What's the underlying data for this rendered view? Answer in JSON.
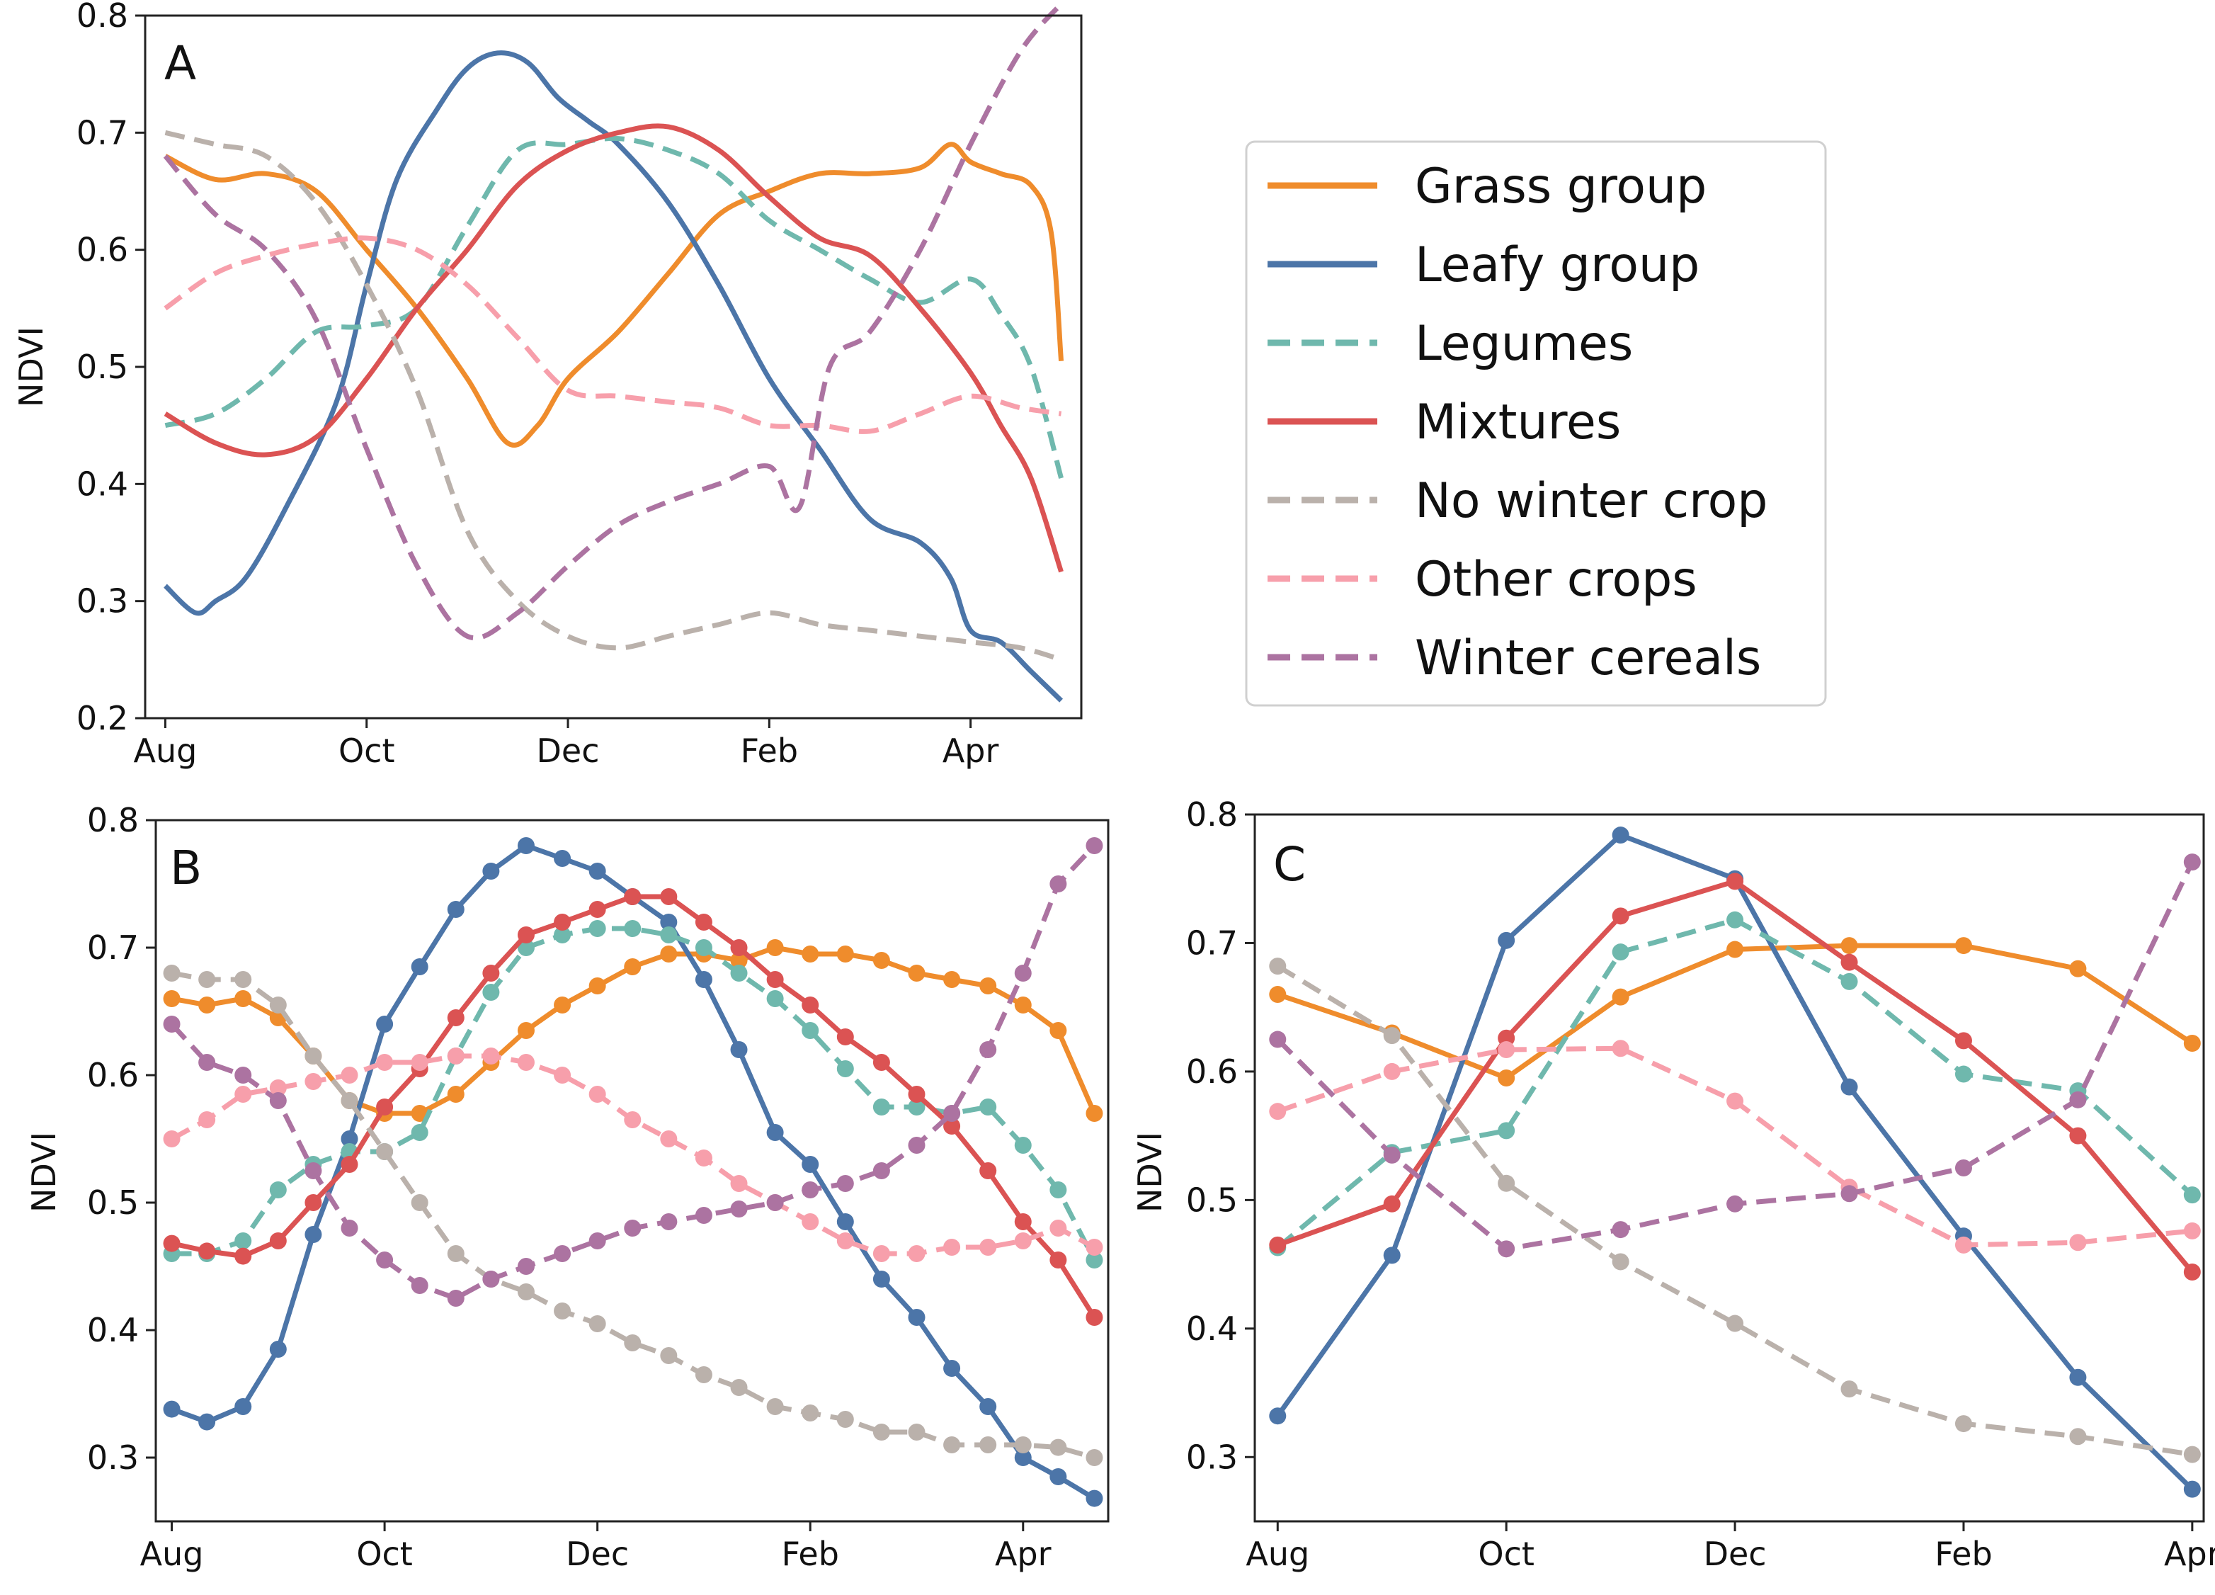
{
  "colors": {
    "Grass group": "#ef8c2c",
    "Leafy group": "#4c75a8",
    "Legumes": "#6fb8ad",
    "Mixtures": "#db5353",
    "No winter crop": "#bab1ab",
    "Other crops": "#f79fab",
    "Winter cereals": "#ac73a1"
  },
  "legend": {
    "entries": [
      {
        "label": "Grass group",
        "style": "solid"
      },
      {
        "label": "Leafy group",
        "style": "solid"
      },
      {
        "label": "Legumes",
        "style": "dashed"
      },
      {
        "label": "Mixtures",
        "style": "solid"
      },
      {
        "label": "No winter crop",
        "style": "dashed"
      },
      {
        "label": "Other crops",
        "style": "dashed"
      },
      {
        "label": "Winter cereals",
        "style": "dashed"
      }
    ]
  },
  "chart_data": [
    {
      "panel": "A",
      "type": "line",
      "ylabel": "NDVI",
      "xlabel": "",
      "ylim": [
        0.2,
        0.8
      ],
      "yticks": [
        "0.2",
        "0.3",
        "0.4",
        "0.5",
        "0.6",
        "0.7",
        "0.8"
      ],
      "xticks": [
        "Aug",
        "Oct",
        "Dec",
        "Feb",
        "Apr"
      ],
      "xrange": [
        -0.2,
        9.1
      ],
      "markers": false,
      "series": [
        {
          "name": "Grass group",
          "style": "solid",
          "x": [
            0,
            0.5,
            1,
            1.5,
            2,
            2.5,
            3,
            3.4,
            3.7,
            4,
            4.5,
            5,
            5.5,
            6,
            6.5,
            7,
            7.5,
            7.8,
            8,
            8.3,
            8.6,
            8.8,
            8.9
          ],
          "values": [
            0.68,
            0.66,
            0.665,
            0.65,
            0.6,
            0.55,
            0.49,
            0.435,
            0.45,
            0.49,
            0.53,
            0.58,
            0.63,
            0.65,
            0.665,
            0.665,
            0.67,
            0.69,
            0.675,
            0.665,
            0.655,
            0.615,
            0.505
          ]
        },
        {
          "name": "Leafy group",
          "style": "solid",
          "x": [
            0,
            0.3,
            0.5,
            0.8,
            1.2,
            1.7,
            2,
            2.3,
            2.7,
            3,
            3.3,
            3.6,
            3.9,
            4.2,
            4.5,
            5,
            5.5,
            6,
            6.5,
            7,
            7.5,
            7.8,
            8,
            8.3,
            8.6,
            8.9
          ],
          "values": [
            0.313,
            0.29,
            0.3,
            0.32,
            0.38,
            0.47,
            0.57,
            0.66,
            0.72,
            0.755,
            0.768,
            0.76,
            0.73,
            0.71,
            0.69,
            0.64,
            0.57,
            0.49,
            0.43,
            0.37,
            0.35,
            0.32,
            0.275,
            0.265,
            0.24,
            0.215
          ]
        },
        {
          "name": "Legumes",
          "style": "dashed",
          "x": [
            0,
            0.5,
            1,
            1.5,
            2,
            2.5,
            3,
            3.5,
            4,
            4.5,
            5,
            5.5,
            6,
            6.5,
            7,
            7.5,
            8,
            8.3,
            8.6,
            8.9
          ],
          "values": [
            0.45,
            0.46,
            0.49,
            0.53,
            0.535,
            0.55,
            0.62,
            0.685,
            0.69,
            0.695,
            0.685,
            0.665,
            0.625,
            0.6,
            0.575,
            0.555,
            0.575,
            0.545,
            0.5,
            0.405
          ]
        },
        {
          "name": "Mixtures",
          "style": "solid",
          "x": [
            0,
            0.5,
            1,
            1.5,
            2,
            2.5,
            3,
            3.5,
            4,
            4.5,
            5,
            5.5,
            6,
            6.5,
            7,
            7.5,
            8,
            8.3,
            8.6,
            8.9
          ],
          "values": [
            0.46,
            0.435,
            0.425,
            0.44,
            0.49,
            0.55,
            0.6,
            0.655,
            0.685,
            0.7,
            0.705,
            0.685,
            0.645,
            0.61,
            0.595,
            0.55,
            0.495,
            0.45,
            0.405,
            0.325
          ]
        },
        {
          "name": "No winter crop",
          "style": "dashed",
          "x": [
            0,
            0.5,
            1,
            1.5,
            2,
            2.5,
            3,
            3.5,
            4,
            4.5,
            5,
            5.5,
            6,
            6.5,
            7,
            7.5,
            8,
            8.5,
            8.9
          ],
          "values": [
            0.7,
            0.69,
            0.68,
            0.64,
            0.57,
            0.48,
            0.36,
            0.3,
            0.27,
            0.26,
            0.27,
            0.28,
            0.29,
            0.28,
            0.275,
            0.27,
            0.265,
            0.26,
            0.25
          ]
        },
        {
          "name": "Other crops",
          "style": "dashed",
          "x": [
            0,
            0.5,
            1,
            1.5,
            2,
            2.5,
            3,
            3.5,
            4,
            4.5,
            5,
            5.5,
            6,
            6.5,
            7,
            7.5,
            8,
            8.5,
            8.9
          ],
          "values": [
            0.55,
            0.58,
            0.595,
            0.605,
            0.61,
            0.6,
            0.57,
            0.525,
            0.48,
            0.475,
            0.47,
            0.465,
            0.45,
            0.45,
            0.445,
            0.46,
            0.475,
            0.465,
            0.46
          ]
        },
        {
          "name": "Winter cereals",
          "style": "dashed",
          "x": [
            0,
            0.5,
            1,
            1.5,
            2,
            2.5,
            3,
            3.5,
            4,
            4.5,
            5,
            5.5,
            6,
            6.3,
            6.6,
            7,
            7.5,
            8,
            8.5,
            8.9
          ],
          "values": [
            0.68,
            0.63,
            0.6,
            0.54,
            0.43,
            0.33,
            0.27,
            0.29,
            0.33,
            0.365,
            0.385,
            0.4,
            0.415,
            0.38,
            0.5,
            0.53,
            0.6,
            0.69,
            0.77,
            0.81
          ]
        }
      ]
    },
    {
      "panel": "B",
      "type": "line",
      "ylabel": "NDVI",
      "xlabel": "",
      "ylim": [
        0.25,
        0.8
      ],
      "yticks": [
        "0.3",
        "0.4",
        "0.5",
        "0.6",
        "0.7",
        "0.8"
      ],
      "xticks": [
        "Aug",
        "Oct",
        "Dec",
        "Feb",
        "Apr"
      ],
      "xrange": [
        -0.15,
        8.8
      ],
      "markers": true,
      "series": [
        {
          "name": "Grass group",
          "style": "solid",
          "x": [
            0,
            0.33,
            0.67,
            1,
            1.33,
            1.67,
            2,
            2.33,
            2.67,
            3,
            3.33,
            3.67,
            4,
            4.33,
            4.67,
            5,
            5.33,
            5.67,
            6,
            6.33,
            6.67,
            7,
            7.33,
            7.67,
            8,
            8.33,
            8.67
          ],
          "values": [
            0.66,
            0.655,
            0.66,
            0.645,
            0.615,
            0.58,
            0.57,
            0.57,
            0.585,
            0.61,
            0.635,
            0.655,
            0.67,
            0.685,
            0.695,
            0.695,
            0.69,
            0.7,
            0.695,
            0.695,
            0.69,
            0.68,
            0.675,
            0.67,
            0.655,
            0.635,
            0.57
          ]
        },
        {
          "name": "Leafy group",
          "style": "solid",
          "x": [
            0,
            0.33,
            0.67,
            1,
            1.33,
            1.67,
            2,
            2.33,
            2.67,
            3,
            3.33,
            3.67,
            4,
            4.33,
            4.67,
            5,
            5.33,
            5.67,
            6,
            6.33,
            6.67,
            7,
            7.33,
            7.67,
            8,
            8.33,
            8.67
          ],
          "values": [
            0.338,
            0.328,
            0.34,
            0.385,
            0.475,
            0.55,
            0.64,
            0.685,
            0.73,
            0.76,
            0.78,
            0.77,
            0.76,
            0.74,
            0.72,
            0.675,
            0.62,
            0.555,
            0.53,
            0.485,
            0.44,
            0.41,
            0.37,
            0.34,
            0.3,
            0.285,
            0.268
          ]
        },
        {
          "name": "Legumes",
          "style": "dashed",
          "x": [
            0,
            0.33,
            0.67,
            1,
            1.33,
            1.67,
            2,
            2.33,
            2.67,
            3,
            3.33,
            3.67,
            4,
            4.33,
            4.67,
            5,
            5.33,
            5.67,
            6,
            6.33,
            6.67,
            7,
            7.33,
            7.67,
            8,
            8.33,
            8.67
          ],
          "values": [
            0.46,
            0.46,
            0.47,
            0.51,
            0.53,
            0.54,
            0.54,
            0.555,
            0.615,
            0.665,
            0.7,
            0.71,
            0.715,
            0.715,
            0.71,
            0.7,
            0.68,
            0.66,
            0.635,
            0.605,
            0.575,
            0.575,
            0.57,
            0.575,
            0.545,
            0.51,
            0.455
          ]
        },
        {
          "name": "Mixtures",
          "style": "solid",
          "x": [
            0,
            0.33,
            0.67,
            1,
            1.33,
            1.67,
            2,
            2.33,
            2.67,
            3,
            3.33,
            3.67,
            4,
            4.33,
            4.67,
            5,
            5.33,
            5.67,
            6,
            6.33,
            6.67,
            7,
            7.33,
            7.67,
            8,
            8.33,
            8.67
          ],
          "values": [
            0.468,
            0.462,
            0.458,
            0.47,
            0.5,
            0.53,
            0.575,
            0.605,
            0.645,
            0.68,
            0.71,
            0.72,
            0.73,
            0.74,
            0.74,
            0.72,
            0.7,
            0.675,
            0.655,
            0.63,
            0.61,
            0.585,
            0.56,
            0.525,
            0.485,
            0.455,
            0.41
          ]
        },
        {
          "name": "No winter crop",
          "style": "dashed",
          "x": [
            0,
            0.33,
            0.67,
            1,
            1.33,
            1.67,
            2,
            2.33,
            2.67,
            3,
            3.33,
            3.67,
            4,
            4.33,
            4.67,
            5,
            5.33,
            5.67,
            6,
            6.33,
            6.67,
            7,
            7.33,
            7.67,
            8,
            8.33,
            8.67
          ],
          "values": [
            0.68,
            0.675,
            0.675,
            0.655,
            0.615,
            0.58,
            0.54,
            0.5,
            0.46,
            0.44,
            0.43,
            0.415,
            0.405,
            0.39,
            0.38,
            0.365,
            0.355,
            0.34,
            0.335,
            0.33,
            0.32,
            0.32,
            0.31,
            0.31,
            0.31,
            0.308,
            0.3
          ]
        },
        {
          "name": "Other crops",
          "style": "dashed",
          "x": [
            0,
            0.33,
            0.67,
            1,
            1.33,
            1.67,
            2,
            2.33,
            2.67,
            3,
            3.33,
            3.67,
            4,
            4.33,
            4.67,
            5,
            5.33,
            5.67,
            6,
            6.33,
            6.67,
            7,
            7.33,
            7.67,
            8,
            8.33,
            8.67
          ],
          "values": [
            0.55,
            0.565,
            0.585,
            0.59,
            0.595,
            0.6,
            0.61,
            0.61,
            0.615,
            0.615,
            0.61,
            0.6,
            0.585,
            0.565,
            0.55,
            0.535,
            0.515,
            0.5,
            0.485,
            0.47,
            0.46,
            0.46,
            0.465,
            0.465,
            0.47,
            0.48,
            0.465
          ]
        },
        {
          "name": "Winter cereals",
          "style": "dashed",
          "x": [
            0,
            0.33,
            0.67,
            1,
            1.33,
            1.67,
            2,
            2.33,
            2.67,
            3,
            3.33,
            3.67,
            4,
            4.33,
            4.67,
            5,
            5.33,
            5.67,
            6,
            6.33,
            6.67,
            7,
            7.33,
            7.67,
            8,
            8.33,
            8.67
          ],
          "values": [
            0.64,
            0.61,
            0.6,
            0.58,
            0.525,
            0.48,
            0.455,
            0.435,
            0.425,
            0.44,
            0.45,
            0.46,
            0.47,
            0.48,
            0.485,
            0.49,
            0.495,
            0.5,
            0.51,
            0.515,
            0.525,
            0.545,
            0.57,
            0.62,
            0.68,
            0.75,
            0.78
          ]
        }
      ]
    },
    {
      "panel": "C",
      "type": "line",
      "ylabel": "NDVI",
      "xlabel": "",
      "ylim": [
        0.25,
        0.8
      ],
      "yticks": [
        "0.3",
        "0.4",
        "0.5",
        "0.6",
        "0.7",
        "0.8"
      ],
      "xticks": [
        "Aug",
        "Oct",
        "Dec",
        "Feb",
        "Apr"
      ],
      "xrange": [
        -0.2,
        8.1
      ],
      "markers": true,
      "series": [
        {
          "name": "Grass group",
          "style": "solid",
          "x": [
            0,
            1,
            2,
            3,
            4,
            5,
            6,
            7,
            8
          ],
          "values": [
            0.66,
            0.63,
            0.595,
            0.658,
            0.695,
            0.698,
            0.698,
            0.68,
            0.622
          ]
        },
        {
          "name": "Leafy group",
          "style": "solid",
          "x": [
            0,
            1,
            2,
            3,
            4,
            5,
            6,
            7,
            8
          ],
          "values": [
            0.332,
            0.457,
            0.702,
            0.784,
            0.75,
            0.588,
            0.472,
            0.362,
            0.275
          ]
        },
        {
          "name": "Legumes",
          "style": "dashed",
          "x": [
            0,
            1,
            2,
            3,
            4,
            5,
            6,
            7,
            8
          ],
          "values": [
            0.463,
            0.537,
            0.554,
            0.693,
            0.718,
            0.67,
            0.598,
            0.585,
            0.504
          ]
        },
        {
          "name": "Mixtures",
          "style": "solid",
          "x": [
            0,
            1,
            2,
            3,
            4,
            5,
            6,
            7,
            8
          ],
          "values": [
            0.465,
            0.497,
            0.626,
            0.721,
            0.748,
            0.685,
            0.624,
            0.55,
            0.444
          ]
        },
        {
          "name": "No winter crop",
          "style": "dashed",
          "x": [
            0,
            1,
            2,
            3,
            4,
            5,
            6,
            7,
            8
          ],
          "values": [
            0.682,
            0.628,
            0.513,
            0.452,
            0.404,
            0.353,
            0.326,
            0.316,
            0.302
          ]
        },
        {
          "name": "Other crops",
          "style": "dashed",
          "x": [
            0,
            1,
            2,
            3,
            4,
            5,
            6,
            7,
            8
          ],
          "values": [
            0.569,
            0.6,
            0.617,
            0.618,
            0.577,
            0.51,
            0.465,
            0.467,
            0.476
          ]
        },
        {
          "name": "Winter cereals",
          "style": "dashed",
          "x": [
            0,
            1,
            2,
            3,
            4,
            5,
            6,
            7,
            8
          ],
          "values": [
            0.625,
            0.535,
            0.462,
            0.477,
            0.497,
            0.505,
            0.525,
            0.578,
            0.763
          ]
        }
      ]
    }
  ]
}
